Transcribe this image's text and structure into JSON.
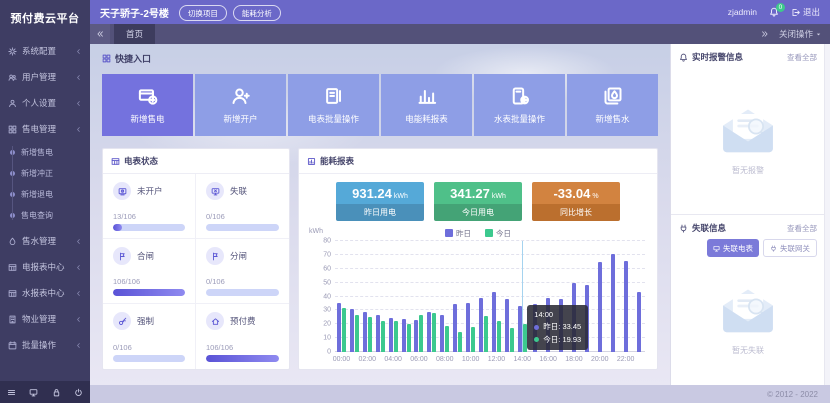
{
  "app": {
    "logo": "预付费云平台",
    "copyright": "© 2012 - 2022"
  },
  "header": {
    "title": "天子骄子-2号楼",
    "buttons": [
      "切换项目",
      "能耗分析"
    ],
    "user": "zjadmin",
    "bell_badge": "0",
    "logout": "退出"
  },
  "tabbar": {
    "active_tab": "首页",
    "close_menu": "关闭操作"
  },
  "sidebar": {
    "items": [
      {
        "label": "系统配置",
        "icon": "gear"
      },
      {
        "label": "用户管理",
        "icon": "users"
      },
      {
        "label": "个人设置",
        "icon": "person"
      },
      {
        "label": "售电管理",
        "icon": "grid",
        "expanded": true,
        "children": [
          "新增售电",
          "新增冲正",
          "新增退电",
          "售电查询"
        ]
      },
      {
        "label": "售水管理",
        "icon": "water"
      },
      {
        "label": "电报表中心",
        "icon": "table"
      },
      {
        "label": "水报表中心",
        "icon": "table"
      },
      {
        "label": "物业管理",
        "icon": "building"
      },
      {
        "label": "批量操作",
        "icon": "calendar"
      }
    ],
    "footer_icons": [
      "menu",
      "monitor",
      "lock",
      "power"
    ]
  },
  "quick_entry": {
    "title": "快捷入口",
    "primary_color": "#7472de",
    "default_color": "#8e9ee6",
    "buttons": [
      {
        "label": "新增售电",
        "icon": "card-coin",
        "primary": true
      },
      {
        "label": "新增开户",
        "icon": "user-plus",
        "primary": false
      },
      {
        "label": "电表批量操作",
        "icon": "meter-book",
        "primary": false
      },
      {
        "label": "电能耗报表",
        "icon": "bar-chart",
        "primary": false
      },
      {
        "label": "水表批量操作",
        "icon": "device-gear",
        "primary": false
      },
      {
        "label": "新增售水",
        "icon": "water-pages",
        "primary": false
      }
    ]
  },
  "meter_status": {
    "title": "电表状态",
    "items": [
      {
        "label": "未开户",
        "value": "13/106",
        "pct": 12,
        "icon": "meter"
      },
      {
        "label": "失联",
        "value": "0/106",
        "pct": 0,
        "icon": "monitor-x"
      },
      {
        "label": "合闸",
        "value": "106/106",
        "pct": 100,
        "icon": "flag"
      },
      {
        "label": "分闸",
        "value": "0/106",
        "pct": 0,
        "icon": "flag"
      },
      {
        "label": "强制",
        "value": "0/106",
        "pct": 0,
        "icon": "key"
      },
      {
        "label": "预付费",
        "value": "106/106",
        "pct": 100,
        "icon": "home"
      }
    ]
  },
  "energy_report": {
    "title": "能耗报表",
    "stats": [
      {
        "value": "931.24",
        "unit": "kWh",
        "label": "昨日用电",
        "color": "#55a9d8",
        "footer_color": "#4a90ba"
      },
      {
        "value": "341.27",
        "unit": "kWh",
        "label": "今日用电",
        "color": "#4fc089",
        "footer_color": "#44a376"
      },
      {
        "value": "-33.04",
        "unit": "%",
        "label": "同比增长",
        "color": "#d28340",
        "footer_color": "#bb6f2e"
      }
    ]
  },
  "chart_data": {
    "type": "bar",
    "title": "能耗报表",
    "ylabel": "kWh",
    "ylim": [
      0,
      80
    ],
    "yticks": [
      0,
      10,
      20,
      30,
      40,
      50,
      60,
      70,
      80
    ],
    "x_tick_every": 2,
    "grid": "dashed",
    "legend_position": "top-center",
    "x": [
      "00:00",
      "01:00",
      "02:00",
      "03:00",
      "04:00",
      "05:00",
      "06:00",
      "07:00",
      "08:00",
      "09:00",
      "10:00",
      "11:00",
      "12:00",
      "13:00",
      "14:00",
      "15:00",
      "16:00",
      "17:00",
      "18:00",
      "19:00",
      "20:00",
      "21:00",
      "22:00",
      "23:00"
    ],
    "series": [
      {
        "name": "昨日",
        "color": "#6e6edb",
        "values": [
          35,
          31,
          28.5,
          27,
          24.5,
          24,
          23,
          28.5,
          27,
          34.5,
          35.5,
          39,
          43,
          38.5,
          33.45,
          34.5,
          39,
          38.5,
          50,
          48.5,
          65,
          71,
          65.5,
          43.5
        ]
      },
      {
        "name": "今日",
        "color": "#3cc98e",
        "values": [
          32,
          26.5,
          25.5,
          22,
          22.5,
          20.5,
          26.5,
          28,
          19,
          14.5,
          18,
          26,
          22,
          17.5,
          19.93,
          null,
          null,
          null,
          null,
          null,
          null,
          null,
          null,
          null
        ]
      }
    ],
    "tooltip": {
      "index": 14,
      "title": "14:00",
      "rows": [
        {
          "name": "昨日",
          "value": "33.45",
          "color": "#6e6edb"
        },
        {
          "name": "今日",
          "value": "19.93",
          "color": "#3cc98e"
        }
      ]
    }
  },
  "alarm_panel": {
    "title": "实时报警信息",
    "view_all": "查看全部",
    "empty": "暂无报警"
  },
  "offline_panel": {
    "title": "失联信息",
    "view_all": "查看全部",
    "tabs": [
      {
        "label": "失联电表",
        "icon": "monitor",
        "active": true
      },
      {
        "label": "失联网关",
        "icon": "plug",
        "active": false
      }
    ],
    "empty": "暂无失联"
  }
}
